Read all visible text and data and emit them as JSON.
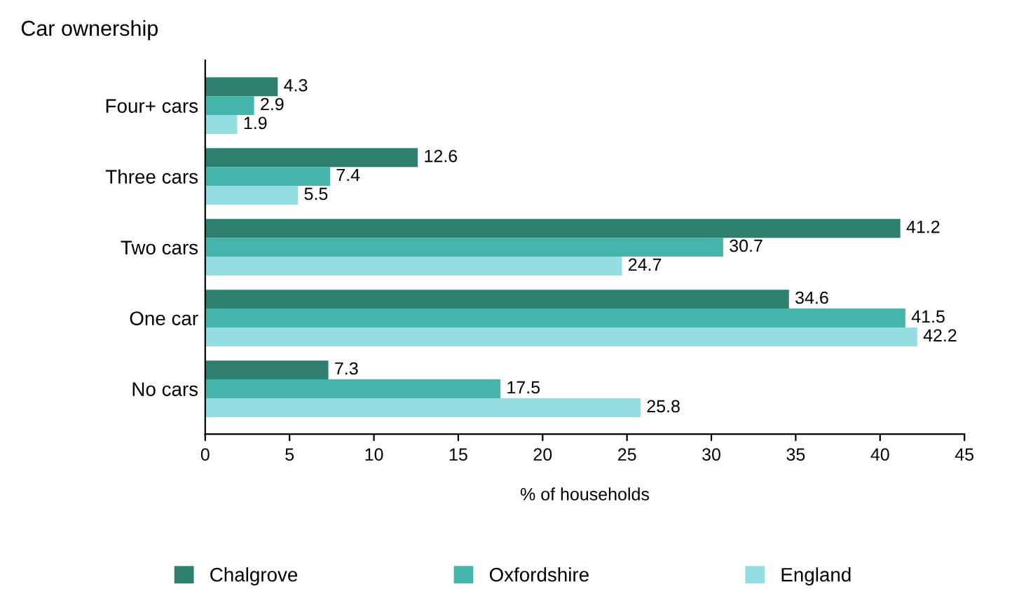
{
  "chart_data": {
    "type": "bar",
    "orientation": "horizontal",
    "title": "Car ownership",
    "xlabel": "% of households",
    "categories": [
      "Four+ cars",
      "Three cars",
      "Two cars",
      "One car",
      "No cars"
    ],
    "series": [
      {
        "name": "Chalgrove",
        "color": "#2f7f6e",
        "values": [
          4.3,
          12.6,
          41.2,
          34.6,
          7.3
        ]
      },
      {
        "name": "Oxfordshire",
        "color": "#45b5aa",
        "values": [
          2.9,
          7.4,
          30.7,
          41.5,
          17.5
        ]
      },
      {
        "name": "England",
        "color": "#94dde0",
        "values": [
          1.9,
          5.5,
          24.7,
          42.2,
          25.8
        ]
      }
    ],
    "xlim": [
      0,
      45
    ],
    "xticks": [
      0,
      5,
      10,
      15,
      20,
      25,
      30,
      35,
      40,
      45
    ],
    "data_labels": true,
    "legend": "bottom",
    "grid": false
  }
}
